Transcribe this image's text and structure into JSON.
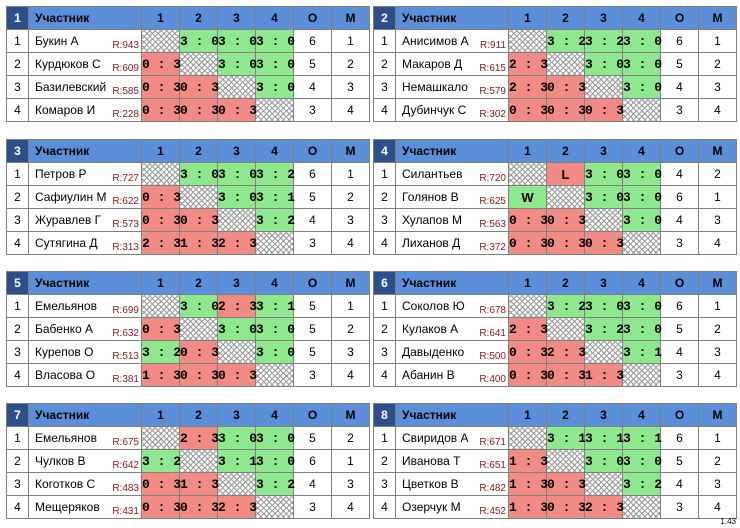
{
  "header": {
    "participant": "Участник",
    "cols": [
      "1",
      "2",
      "3",
      "4"
    ],
    "o": "О",
    "m": "М"
  },
  "groups": [
    {
      "num": "1",
      "rows": [
        {
          "idx": "1",
          "name": "Букин А",
          "rating": "R:943",
          "cells": [
            "",
            "3 : 0",
            "3 : 0",
            "3 : 0"
          ],
          "o": "6",
          "m": "1"
        },
        {
          "idx": "2",
          "name": "Курдюков С",
          "rating": "R:609",
          "cells": [
            "0 : 3",
            "",
            "3 : 0",
            "3 : 0"
          ],
          "o": "5",
          "m": "2"
        },
        {
          "idx": "3",
          "name": "Базилевский",
          "rating": "R:585",
          "cells": [
            "0 : 3",
            "0 : 3",
            "",
            "3 : 0"
          ],
          "o": "4",
          "m": "3"
        },
        {
          "idx": "4",
          "name": "Комаров И",
          "rating": "R:228",
          "cells": [
            "0 : 3",
            "0 : 3",
            "0 : 3",
            ""
          ],
          "o": "3",
          "m": "4"
        }
      ]
    },
    {
      "num": "2",
      "rows": [
        {
          "idx": "1",
          "name": "Анисимов А",
          "rating": "R:911",
          "cells": [
            "",
            "3 : 2",
            "3 : 2",
            "3 : 0"
          ],
          "o": "6",
          "m": "1"
        },
        {
          "idx": "2",
          "name": "Макаров Д",
          "rating": "R:615",
          "cells": [
            "2 : 3",
            "",
            "3 : 0",
            "3 : 0"
          ],
          "o": "5",
          "m": "2"
        },
        {
          "idx": "3",
          "name": "Немашкало",
          "rating": "R:579",
          "cells": [
            "2 : 3",
            "0 : 3",
            "",
            "3 : 0"
          ],
          "o": "4",
          "m": "3"
        },
        {
          "idx": "4",
          "name": "Дубинчук С",
          "rating": "R:302",
          "cells": [
            "0 : 3",
            "0 : 3",
            "0 : 3",
            ""
          ],
          "o": "3",
          "m": "4"
        }
      ]
    },
    {
      "num": "3",
      "rows": [
        {
          "idx": "1",
          "name": "Петров Р",
          "rating": "R:727",
          "cells": [
            "",
            "3 : 0",
            "3 : 0",
            "3 : 2"
          ],
          "o": "6",
          "m": "1"
        },
        {
          "idx": "2",
          "name": "Сафиулин М",
          "rating": "R:622",
          "cells": [
            "0 : 3",
            "",
            "3 : 0",
            "3 : 1"
          ],
          "o": "5",
          "m": "2"
        },
        {
          "idx": "3",
          "name": "Журавлев Г",
          "rating": "R:573",
          "cells": [
            "0 : 3",
            "0 : 3",
            "",
            "3 : 2"
          ],
          "o": "4",
          "m": "3"
        },
        {
          "idx": "4",
          "name": "Сутягина Д",
          "rating": "R:313",
          "cells": [
            "2 : 3",
            "1 : 3",
            "2 : 3",
            ""
          ],
          "o": "3",
          "m": "4"
        }
      ]
    },
    {
      "num": "4",
      "rows": [
        {
          "idx": "1",
          "name": "Силантьев",
          "rating": "R:720",
          "cells": [
            "",
            "L",
            "3 : 0",
            "3 : 0"
          ],
          "o": "4",
          "m": "2"
        },
        {
          "idx": "2",
          "name": "Голянов В",
          "rating": "R:625",
          "cells": [
            "W",
            "",
            "3 : 0",
            "3 : 0"
          ],
          "o": "6",
          "m": "1"
        },
        {
          "idx": "3",
          "name": "Хулапов М",
          "rating": "R:563",
          "cells": [
            "0 : 3",
            "0 : 3",
            "",
            "3 : 0"
          ],
          "o": "4",
          "m": "3"
        },
        {
          "idx": "4",
          "name": "Лиханов Д",
          "rating": "R:372",
          "cells": [
            "0 : 3",
            "0 : 3",
            "0 : 3",
            ""
          ],
          "o": "3",
          "m": "4"
        }
      ]
    },
    {
      "num": "5",
      "rows": [
        {
          "idx": "1",
          "name": "Емельянов",
          "rating": "R:699",
          "cells": [
            "",
            "3 : 0",
            "2 : 3",
            "3 : 1"
          ],
          "o": "5",
          "m": "1"
        },
        {
          "idx": "2",
          "name": "Бабенко А",
          "rating": "R:632",
          "cells": [
            "0 : 3",
            "",
            "3 : 0",
            "3 : 0"
          ],
          "o": "5",
          "m": "2"
        },
        {
          "idx": "3",
          "name": "Курепов О",
          "rating": "R:513",
          "cells": [
            "3 : 2",
            "0 : 3",
            "",
            "3 : 0"
          ],
          "o": "5",
          "m": "3"
        },
        {
          "idx": "4",
          "name": "Власова О",
          "rating": "R:381",
          "cells": [
            "1 : 3",
            "0 : 3",
            "0 : 3",
            ""
          ],
          "o": "3",
          "m": "4"
        }
      ]
    },
    {
      "num": "6",
      "rows": [
        {
          "idx": "1",
          "name": "Соколов Ю",
          "rating": "R:678",
          "cells": [
            "",
            "3 : 2",
            "3 : 0",
            "3 : 0"
          ],
          "o": "6",
          "m": "1"
        },
        {
          "idx": "2",
          "name": "Кулаков А",
          "rating": "R:641",
          "cells": [
            "2 : 3",
            "",
            "3 : 2",
            "3 : 0"
          ],
          "o": "5",
          "m": "2"
        },
        {
          "idx": "3",
          "name": "Давыденко",
          "rating": "R:500",
          "cells": [
            "0 : 3",
            "2 : 3",
            "",
            "3 : 1"
          ],
          "o": "4",
          "m": "3"
        },
        {
          "idx": "4",
          "name": "Абанин В",
          "rating": "R:400",
          "cells": [
            "0 : 3",
            "0 : 3",
            "1 : 3",
            ""
          ],
          "o": "3",
          "m": "4"
        }
      ]
    },
    {
      "num": "7",
      "rows": [
        {
          "idx": "1",
          "name": "Емельянов",
          "rating": "R:675",
          "cells": [
            "",
            "2 : 3",
            "3 : 0",
            "3 : 0"
          ],
          "o": "5",
          "m": "2"
        },
        {
          "idx": "2",
          "name": "Чулков В",
          "rating": "R:642",
          "cells": [
            "3 : 2",
            "",
            "3 : 1",
            "3 : 0"
          ],
          "o": "6",
          "m": "1"
        },
        {
          "idx": "3",
          "name": "Коготков С",
          "rating": "R:483",
          "cells": [
            "0 : 3",
            "1 : 3",
            "",
            "3 : 2"
          ],
          "o": "4",
          "m": "3"
        },
        {
          "idx": "4",
          "name": "Мещеряков",
          "rating": "R:431",
          "cells": [
            "0 : 3",
            "0 : 3",
            "2 : 3",
            ""
          ],
          "o": "3",
          "m": "4"
        }
      ]
    },
    {
      "num": "8",
      "rows": [
        {
          "idx": "1",
          "name": "Свиридов А",
          "rating": "R:671",
          "cells": [
            "",
            "3 : 1",
            "3 : 1",
            "3 : 1"
          ],
          "o": "6",
          "m": "1"
        },
        {
          "idx": "2",
          "name": "Иванова Т",
          "rating": "R:651",
          "cells": [
            "1 : 3",
            "",
            "3 : 0",
            "3 : 0"
          ],
          "o": "5",
          "m": "2"
        },
        {
          "idx": "3",
          "name": "Цветков В",
          "rating": "R:482",
          "cells": [
            "1 : 3",
            "0 : 3",
            "",
            "3 : 2"
          ],
          "o": "4",
          "m": "3"
        },
        {
          "idx": "4",
          "name": "Озерчук М",
          "rating": "R:452",
          "cells": [
            "1 : 3",
            "0 : 3",
            "2 : 3",
            ""
          ],
          "o": "3",
          "m": "4"
        }
      ]
    }
  ],
  "version": "1.43",
  "colors": {
    "header_bg": "#5b8fd9",
    "group_num_bg": "#2c4f8c",
    "win": "#8ee88e",
    "lose": "#f28b84",
    "rating_text": "#8b1a1a"
  }
}
